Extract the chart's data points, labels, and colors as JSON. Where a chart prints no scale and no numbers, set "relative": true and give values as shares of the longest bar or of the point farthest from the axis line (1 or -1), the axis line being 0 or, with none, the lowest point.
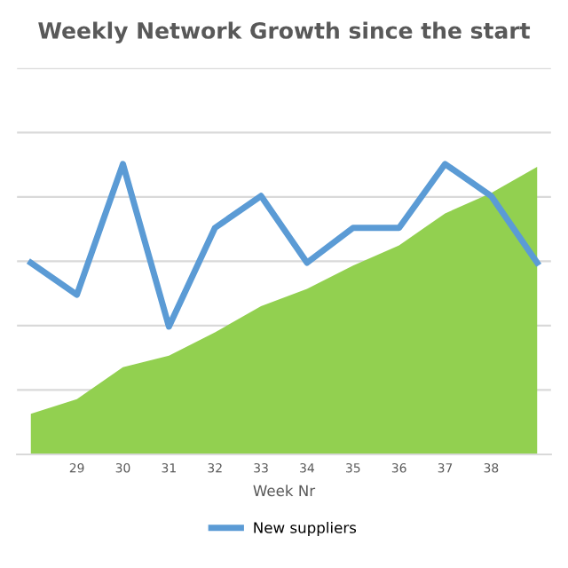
{
  "chart_data": {
    "type": "line",
    "title": "Weekly Network Growth since the start",
    "xlabel": "Week Nr",
    "relative": true,
    "grid": "y",
    "legend": "bottom",
    "categories": [
      null,
      "29",
      "30",
      "31",
      "32",
      "33",
      "34",
      "35",
      "36",
      "37",
      "38",
      null
    ],
    "series": [
      {
        "type": "area",
        "color": "#92d050",
        "values": [
          0.14,
          0.19,
          0.3,
          0.34,
          0.42,
          0.51,
          0.57,
          0.65,
          0.72,
          0.83,
          0.9,
          0.99
        ]
      },
      {
        "name": "New suppliers",
        "color": "#5b9bd5",
        "values": [
          0.66,
          0.55,
          1.0,
          0.44,
          0.78,
          0.89,
          0.66,
          0.78,
          0.78,
          1.0,
          0.89,
          0.66
        ]
      }
    ]
  }
}
